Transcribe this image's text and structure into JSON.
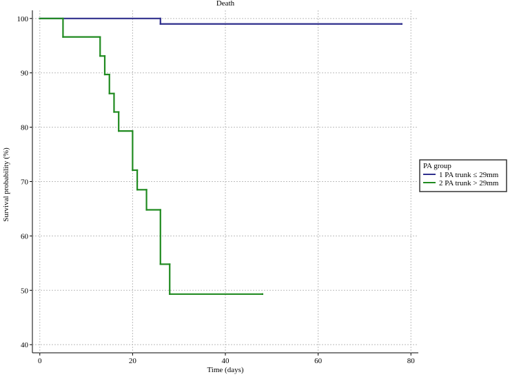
{
  "chart_data": {
    "type": "step",
    "title": "Death",
    "x_label": "Time (days)",
    "y_label": "Survival probability (%)",
    "xlim": [
      -1.6,
      81.6
    ],
    "ylim": [
      38.5,
      101.5
    ],
    "xticks": [
      0,
      20,
      40,
      60,
      80
    ],
    "yticks": [
      40,
      50,
      60,
      70,
      80,
      90,
      100
    ],
    "grid": true,
    "legend_title": "PA group",
    "legend_position": "right",
    "series": [
      {
        "name": "1 PA trunk ≤ 29mm",
        "color": "#2e2e8c",
        "x": [
          0,
          26,
          78
        ],
        "values": [
          100,
          99,
          99
        ]
      },
      {
        "name": "2 PA trunk > 29mm",
        "color": "#1f8a1f",
        "x": [
          0,
          5,
          13,
          14,
          15,
          16,
          17,
          20,
          21,
          23,
          26,
          28,
          48
        ],
        "values": [
          100,
          96.6,
          93.1,
          89.7,
          86.2,
          82.8,
          79.3,
          72.1,
          68.5,
          64.8,
          54.8,
          49.3,
          49.3
        ]
      }
    ]
  }
}
